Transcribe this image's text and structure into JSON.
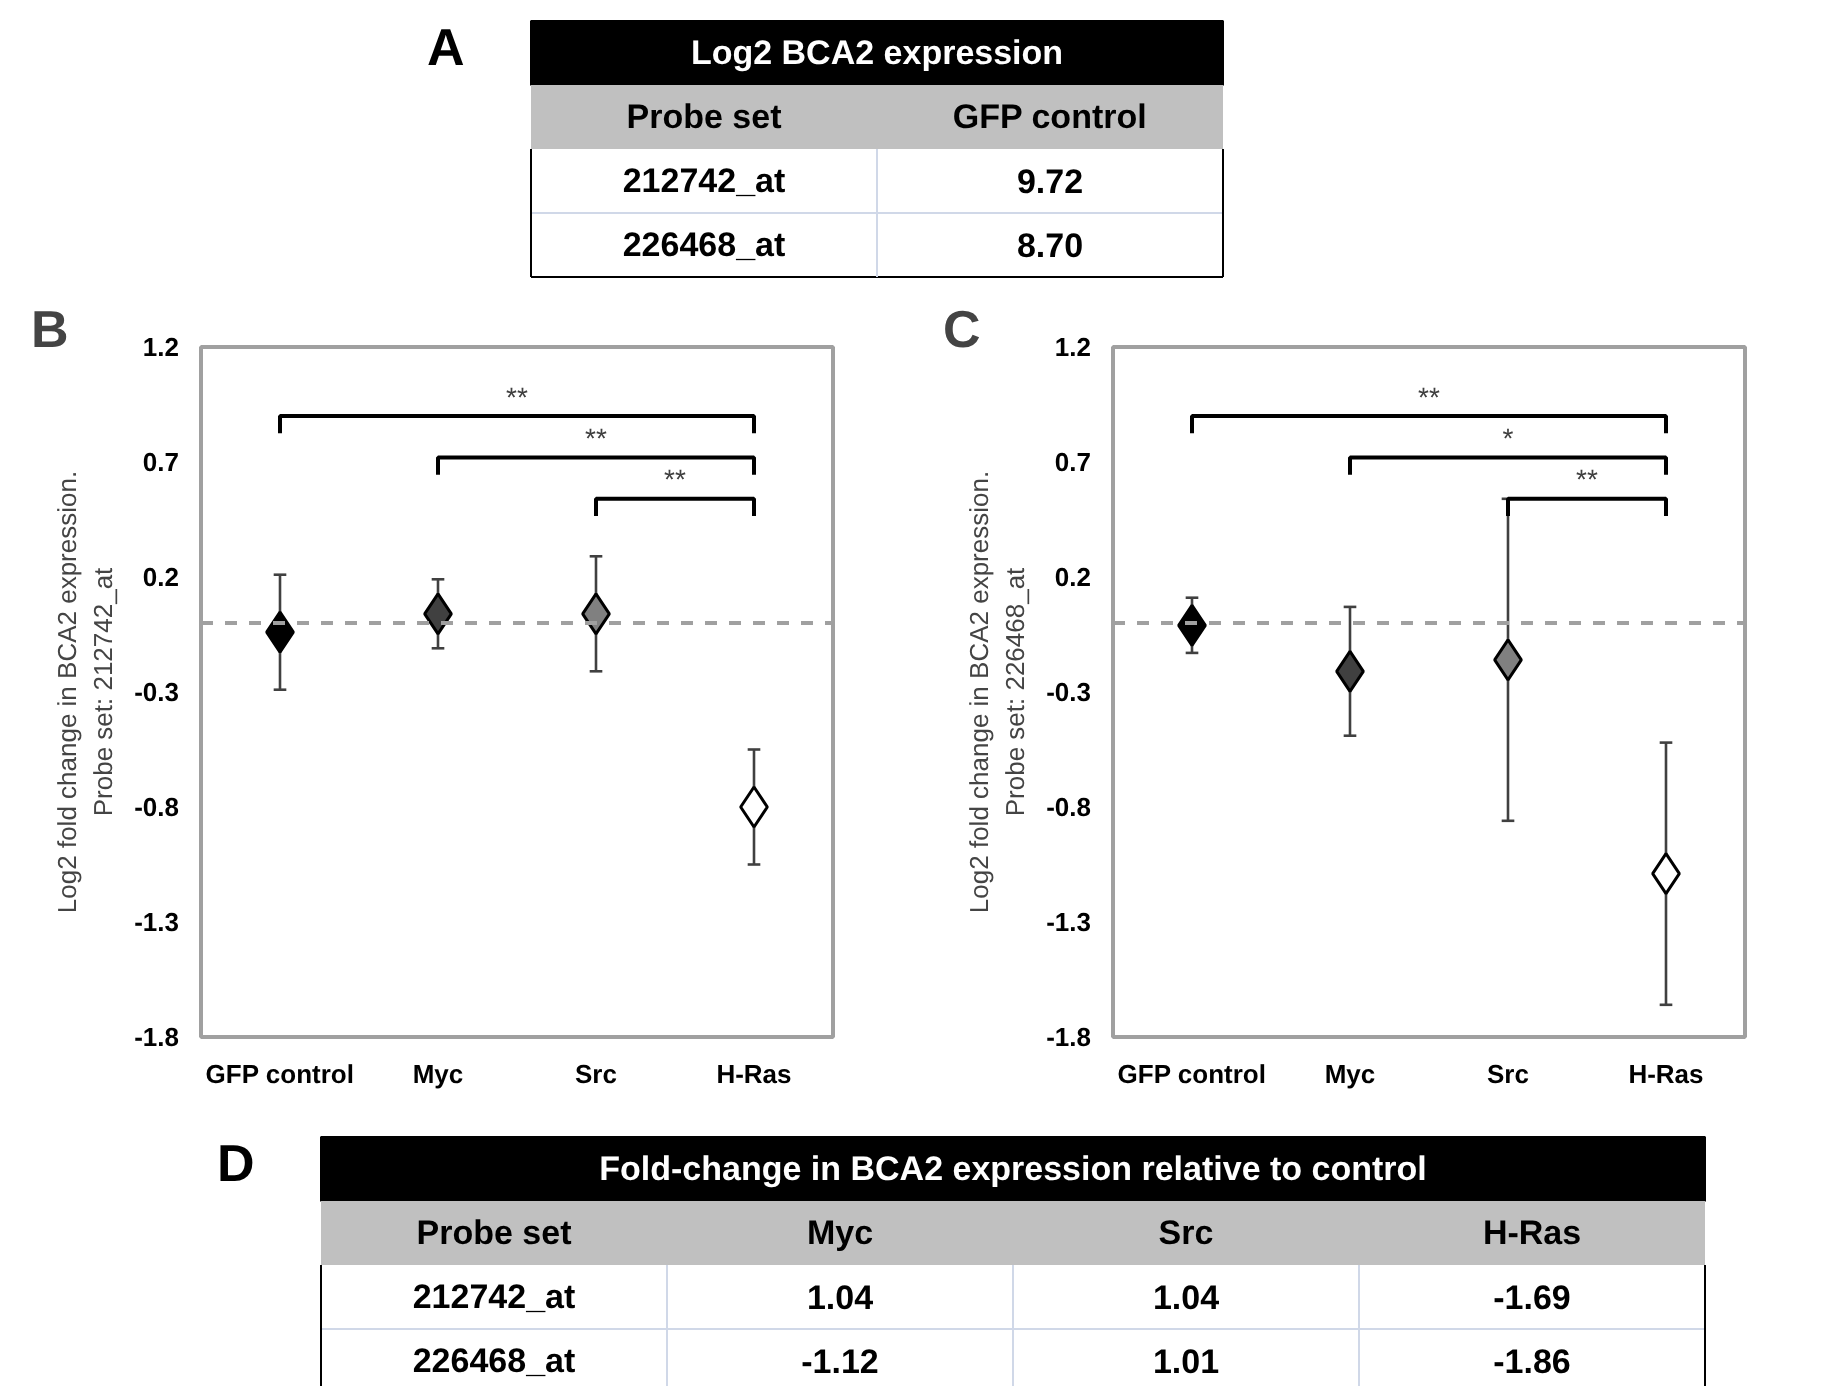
{
  "chart_data": [
    {
      "type": "other",
      "title": "Log2 BCA2 expression",
      "categories": [
        "Probe set",
        "GFP control"
      ],
      "y_categories": [
        "212742_at",
        "226468_at"
      ],
      "cell_labels": [
        [
          "9.72"
        ],
        [
          "8.70"
        ]
      ],
      "annotations": [
        "A"
      ]
    },
    {
      "type": "scatter",
      "categories": [
        "GFP control",
        "Myc",
        "Src",
        "H-Ras"
      ],
      "ylabel": "Log2 fold change in BCA2 expression.\nProbe set: 212742_at",
      "ylim": [
        -1.8,
        1.2
      ],
      "yticks": [
        -1.8,
        -1.3,
        -0.8,
        -0.3,
        0.2,
        0.7,
        1.2
      ],
      "marker": "diamond",
      "series": [
        {
          "values": [
            -0.04,
            0.04,
            0.04,
            -0.8
          ],
          "errors": [
            0.25,
            0.15,
            0.25,
            0.25
          ],
          "colors": [
            "#000000",
            "#404040",
            "#808080",
            "#ffffff"
          ]
        }
      ],
      "ref_lines": [
        {
          "axis": "y",
          "value": 0,
          "color": "#a0a0a0",
          "line_style": "dashed"
        }
      ],
      "annotations": [
        "B",
        "**",
        "**",
        "**"
      ]
    },
    {
      "type": "scatter",
      "categories": [
        "GFP control",
        "Myc",
        "Src",
        "H-Ras"
      ],
      "ylabel": "Log2 fold change in BCA2 expression.\nProbe set: 226468_at",
      "ylim": [
        -1.8,
        1.2
      ],
      "yticks": [
        -1.8,
        -1.3,
        -0.8,
        -0.3,
        0.2,
        0.7,
        1.2
      ],
      "marker": "diamond",
      "series": [
        {
          "values": [
            -0.01,
            -0.21,
            -0.16,
            -1.09
          ],
          "errors": [
            0.12,
            0.28,
            0.7,
            0.57
          ],
          "colors": [
            "#000000",
            "#404040",
            "#808080",
            "#ffffff"
          ]
        }
      ],
      "ref_lines": [
        {
          "axis": "y",
          "value": 0,
          "color": "#a0a0a0",
          "line_style": "dashed"
        }
      ],
      "annotations": [
        "C",
        "**",
        "*",
        "**"
      ]
    },
    {
      "type": "other",
      "title": "Fold-change in BCA2 expression relative to control",
      "categories": [
        "Probe set",
        "Myc",
        "Src",
        "H-Ras"
      ],
      "y_categories": [
        "212742_at",
        "226468_at"
      ],
      "cell_labels": [
        [
          "1.04",
          "1.04",
          "-1.69"
        ],
        [
          "-1.12",
          "1.01",
          "-1.86"
        ]
      ],
      "annotations": [
        "D"
      ]
    }
  ]
}
